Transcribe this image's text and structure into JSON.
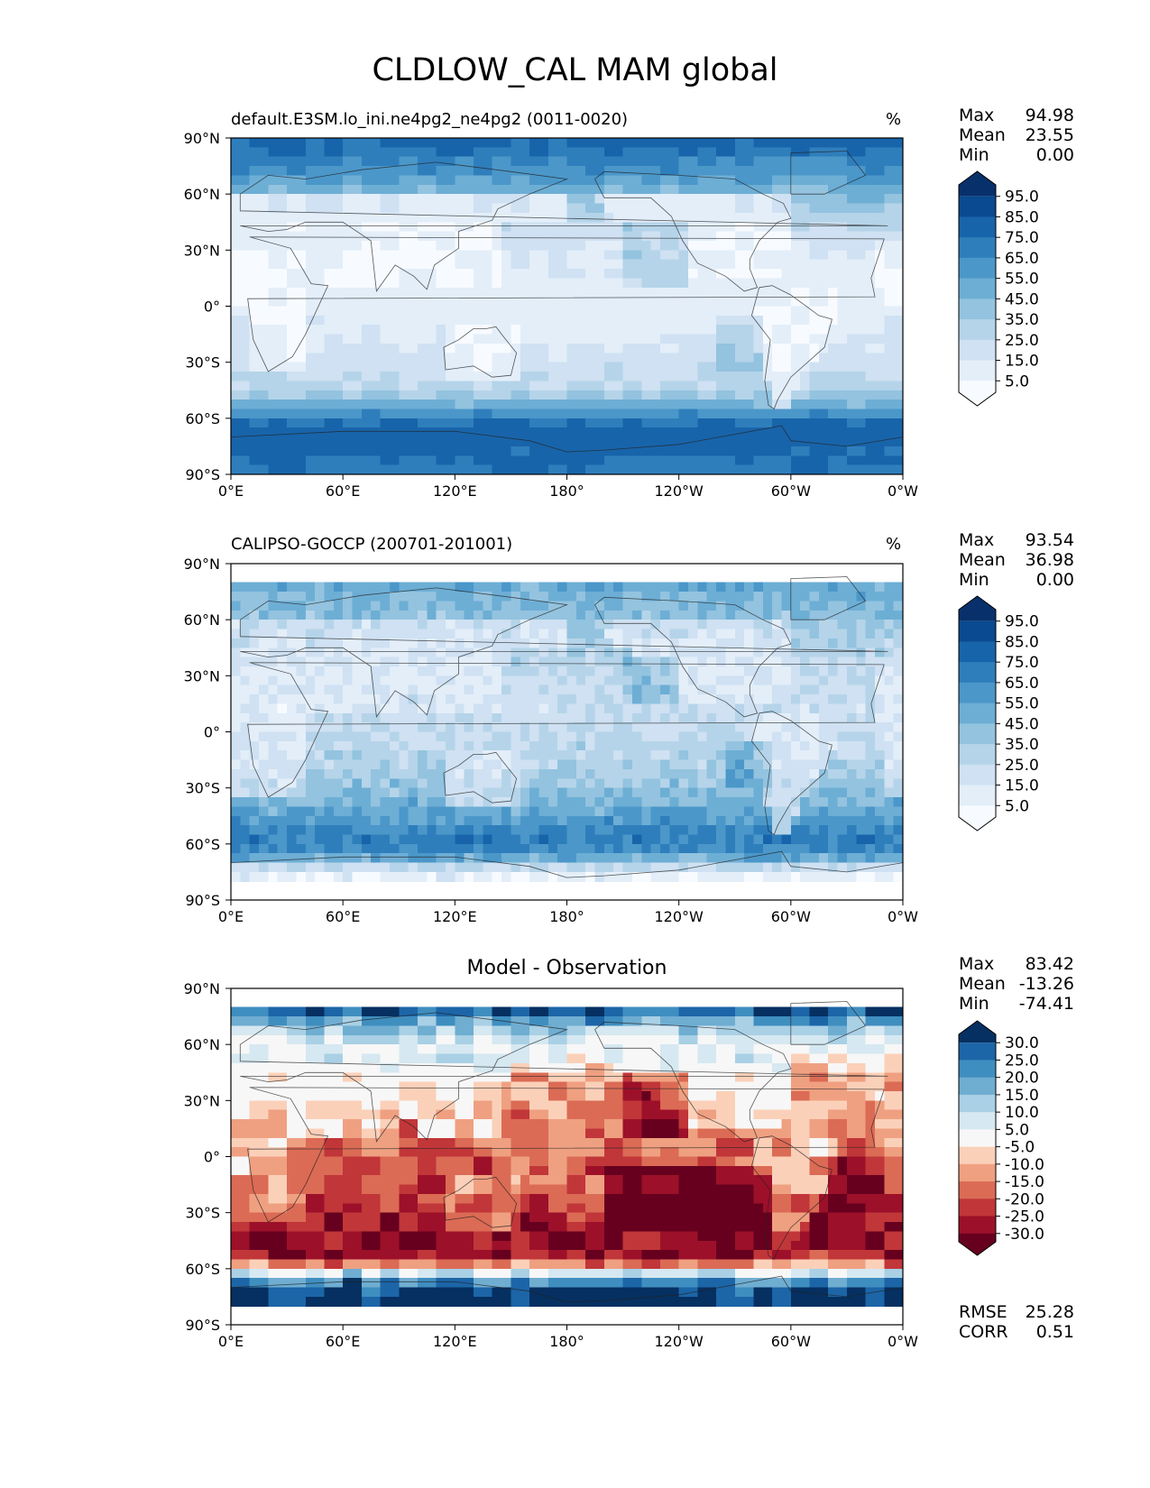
{
  "title": "CLDLOW_CAL MAM global",
  "panels": [
    {
      "id": "model",
      "header": "default.E3SM.lo_ini.ne4pg2_ne4pg2 (0011-0020)",
      "unit": "%",
      "stats": [
        [
          "Max",
          "94.98"
        ],
        [
          "Mean",
          "23.55"
        ],
        [
          "Min",
          "0.00"
        ]
      ],
      "colorbar": [
        "95.0",
        "85.0",
        "75.0",
        "65.0",
        "55.0",
        "45.0",
        "35.0",
        "25.0",
        "15.0",
        "5.0"
      ]
    },
    {
      "id": "obs",
      "header": "CALIPSO-GOCCP (200701-201001)",
      "unit": "%",
      "stats": [
        [
          "Max",
          "93.54"
        ],
        [
          "Mean",
          "36.98"
        ],
        [
          "Min",
          "0.00"
        ]
      ],
      "colorbar": [
        "95.0",
        "85.0",
        "75.0",
        "65.0",
        "55.0",
        "45.0",
        "35.0",
        "25.0",
        "15.0",
        "5.0"
      ]
    },
    {
      "id": "diff",
      "center_title": "Model - Observation",
      "stats": [
        [
          "Max",
          "83.42"
        ],
        [
          "Mean",
          "-13.26"
        ],
        [
          "Min",
          "-74.41"
        ]
      ],
      "colorbar": [
        "30.0",
        "25.0",
        "20.0",
        "15.0",
        "10.0",
        "5.0",
        "-5.0",
        "-10.0",
        "-15.0",
        "-20.0",
        "-25.0",
        "-30.0"
      ],
      "extra_stats": [
        [
          "RMSE",
          "25.28"
        ],
        [
          "CORR",
          "0.51"
        ]
      ]
    }
  ],
  "colors": {
    "blues": [
      "#f7fbff",
      "#e3eef9",
      "#cfe1f2",
      "#b5d4e9",
      "#93c3df",
      "#6daed5",
      "#4b97c9",
      "#2f7ebc",
      "#1864aa",
      "#0a4a90",
      "#08306b"
    ],
    "rdbu": [
      "#67001f",
      "#9d1029",
      "#c13639",
      "#db6b55",
      "#efa081",
      "#fbd0b9",
      "#f7f7f7",
      "#d6e8f1",
      "#a9d0e5",
      "#6fadd1",
      "#3f8ec0",
      "#1c65a7",
      "#053061"
    ]
  },
  "chart_data": {
    "type": "heatmap",
    "xticks": [
      "0°E",
      "60°E",
      "120°E",
      "180°",
      "120°W",
      "60°W",
      "0°W"
    ],
    "yticks": [
      "90°N",
      "60°N",
      "30°N",
      "0°",
      "30°S",
      "60°S",
      "90°S"
    ],
    "xlim": [
      0,
      360
    ],
    "ylim": [
      -90,
      90
    ],
    "model_zonal_mean": [
      [
        90,
        80
      ],
      [
        70,
        60
      ],
      [
        60,
        45
      ],
      [
        45,
        25
      ],
      [
        30,
        15
      ],
      [
        15,
        10
      ],
      [
        0,
        10
      ],
      [
        -15,
        12
      ],
      [
        -30,
        20
      ],
      [
        -45,
        30
      ],
      [
        -55,
        55
      ],
      [
        -65,
        80
      ],
      [
        -75,
        80
      ],
      [
        -90,
        70
      ]
    ],
    "obs_zonal_mean": [
      [
        82,
        55
      ],
      [
        70,
        45
      ],
      [
        60,
        40
      ],
      [
        45,
        30
      ],
      [
        30,
        25
      ],
      [
        15,
        22
      ],
      [
        0,
        25
      ],
      [
        -15,
        30
      ],
      [
        -30,
        40
      ],
      [
        -45,
        55
      ],
      [
        -55,
        70
      ],
      [
        -65,
        65
      ],
      [
        -75,
        10
      ],
      [
        -82,
        5
      ]
    ],
    "diff_zonal_mean": [
      [
        82,
        35
      ],
      [
        70,
        15
      ],
      [
        60,
        5
      ],
      [
        45,
        -10
      ],
      [
        30,
        -12
      ],
      [
        15,
        -15
      ],
      [
        0,
        -18
      ],
      [
        -15,
        -20
      ],
      [
        -30,
        -25
      ],
      [
        -45,
        -30
      ],
      [
        -55,
        -25
      ],
      [
        -65,
        20
      ],
      [
        -75,
        35
      ],
      [
        -82,
        30
      ]
    ]
  }
}
